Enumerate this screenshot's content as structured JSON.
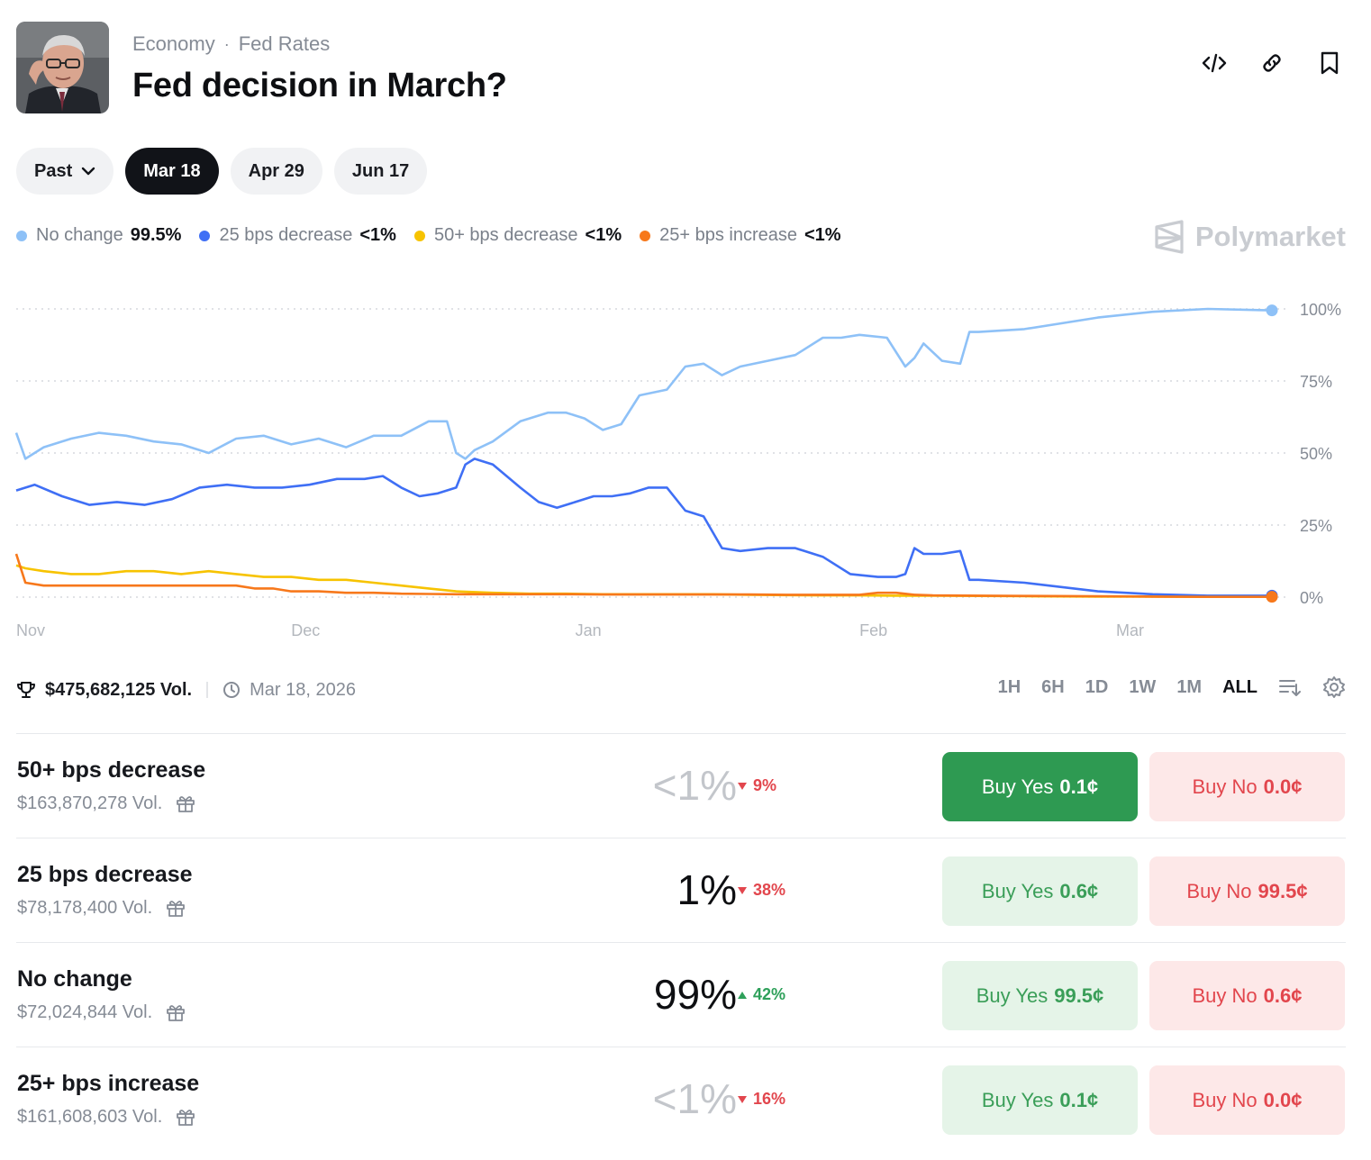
{
  "header": {
    "category": "Economy",
    "separator": "·",
    "subcategory": "Fed Rates",
    "title": "Fed decision in March?"
  },
  "dates": {
    "past_label": "Past",
    "items": [
      "Mar 18",
      "Apr 29",
      "Jun 17"
    ],
    "active": "Mar 18"
  },
  "legend": [
    {
      "name": "No change",
      "value": "99.5%",
      "color": "#8ec1f7"
    },
    {
      "name": "25 bps decrease",
      "value": "<1%",
      "color": "#3f6ff5"
    },
    {
      "name": "50+ bps decrease",
      "value": "<1%",
      "color": "#f7c300"
    },
    {
      "name": "25+ bps increase",
      "value": "<1%",
      "color": "#f7781b"
    }
  ],
  "brand": "Polymarket",
  "chart_data": {
    "type": "line",
    "x_tick_labels": [
      "Nov",
      "Dec",
      "Jan",
      "Feb",
      "Mar"
    ],
    "y_tick_labels": [
      "100%",
      "75%",
      "50%",
      "25%",
      "0%"
    ],
    "ylim": [
      0,
      100
    ],
    "x_range_days": [
      0,
      137
    ],
    "x_tick_days": [
      0,
      30,
      61,
      92,
      120
    ],
    "grid": true,
    "series": [
      {
        "name": "No change",
        "color": "#8ec1f7",
        "x": [
          0,
          1,
          3,
          6,
          9,
          12,
          15,
          18,
          21,
          24,
          27,
          30,
          33,
          36,
          39,
          42,
          45,
          47,
          48,
          49,
          50,
          52,
          55,
          58,
          60,
          62,
          64,
          66,
          68,
          71,
          73,
          75,
          77,
          79,
          82,
          85,
          88,
          90,
          92,
          95,
          97,
          98,
          99,
          101,
          103,
          104,
          105,
          110,
          118,
          124,
          130,
          137
        ],
        "y": [
          57,
          48,
          52,
          55,
          57,
          56,
          54,
          53,
          50,
          55,
          56,
          53,
          55,
          52,
          56,
          56,
          61,
          61,
          50,
          48,
          51,
          54,
          61,
          64,
          64,
          62,
          58,
          60,
          70,
          72,
          80,
          81,
          77,
          80,
          82,
          84,
          90,
          90,
          91,
          90,
          80,
          83,
          88,
          82,
          81,
          92,
          92,
          93,
          97,
          99,
          100,
          99.5
        ]
      },
      {
        "name": "25 bps decrease",
        "color": "#3f6ff5",
        "x": [
          0,
          2,
          5,
          8,
          11,
          14,
          17,
          20,
          23,
          26,
          29,
          32,
          35,
          38,
          40,
          42,
          44,
          46,
          48,
          49,
          50,
          52,
          55,
          57,
          59,
          61,
          63,
          65,
          67,
          69,
          71,
          73,
          75,
          77,
          79,
          82,
          85,
          88,
          91,
          94,
          96,
          97,
          98,
          99,
          101,
          103,
          104,
          105,
          110,
          118,
          124,
          130,
          137
        ],
        "y": [
          37,
          39,
          35,
          32,
          33,
          32,
          34,
          38,
          39,
          38,
          38,
          39,
          41,
          41,
          42,
          38,
          35,
          36,
          38,
          46,
          48,
          46,
          38,
          33,
          31,
          33,
          35,
          35,
          36,
          38,
          38,
          30,
          28,
          17,
          16,
          17,
          17,
          14,
          8,
          7,
          7,
          8,
          17,
          15,
          15,
          16,
          6,
          6,
          5,
          2,
          1,
          0.5,
          0.5
        ]
      },
      {
        "name": "50+ bps decrease",
        "color": "#f7c300",
        "x": [
          0,
          1,
          3,
          6,
          9,
          12,
          15,
          18,
          21,
          24,
          27,
          30,
          33,
          36,
          39,
          42,
          45,
          48,
          52,
          56,
          60,
          64,
          68,
          72,
          76,
          80,
          84,
          88,
          92,
          96,
          100,
          105,
          110,
          118,
          124,
          130,
          137
        ],
        "y": [
          11,
          10,
          9,
          8,
          8,
          9,
          9,
          8,
          9,
          8,
          7,
          7,
          6,
          6,
          5,
          4,
          3,
          2,
          1.5,
          1.2,
          1.2,
          1.0,
          1.0,
          1.0,
          1.0,
          0.8,
          0.7,
          0.6,
          0.6,
          0.5,
          0.5,
          0.4,
          0.3,
          0.2,
          0.2,
          0.1,
          0.1
        ]
      },
      {
        "name": "25+ bps increase",
        "color": "#f7781b",
        "x": [
          0,
          1,
          3,
          6,
          9,
          12,
          15,
          18,
          21,
          24,
          26,
          28,
          30,
          33,
          36,
          39,
          42,
          45,
          48,
          52,
          56,
          60,
          64,
          68,
          72,
          76,
          80,
          84,
          88,
          92,
          94,
          96,
          98,
          100,
          105,
          110,
          118,
          124,
          130,
          137
        ],
        "y": [
          15,
          5,
          4,
          4,
          4,
          4,
          4,
          4,
          4,
          4,
          3,
          3,
          2,
          2,
          1.5,
          1.5,
          1.2,
          1.1,
          1.0,
          1.0,
          1.0,
          1.0,
          0.9,
          0.9,
          0.9,
          0.9,
          0.9,
          0.8,
          0.8,
          0.8,
          1.5,
          1.5,
          0.8,
          0.6,
          0.5,
          0.4,
          0.3,
          0.2,
          0.1,
          0.1
        ]
      }
    ]
  },
  "stats": {
    "volume": "$475,682,125 Vol.",
    "date": "Mar 18, 2026",
    "ranges": [
      "1H",
      "6H",
      "1D",
      "1W",
      "1M",
      "ALL"
    ],
    "active_range": "ALL"
  },
  "outcomes": [
    {
      "name": "50+ bps decrease",
      "volume": "$163,870,278 Vol.",
      "prob": "<1%",
      "delta": "9%",
      "direction": "down",
      "yes_label": "Buy Yes",
      "yes_price": "0.1¢",
      "no_label": "Buy No",
      "no_price": "0.0¢"
    },
    {
      "name": "25 bps decrease",
      "volume": "$78,178,400 Vol.",
      "prob": "1%",
      "delta": "38%",
      "direction": "down",
      "yes_label": "Buy Yes",
      "yes_price": "0.6¢",
      "no_label": "Buy No",
      "no_price": "99.5¢"
    },
    {
      "name": "No change",
      "volume": "$72,024,844 Vol.",
      "prob": "99%",
      "delta": "42%",
      "direction": "up",
      "yes_label": "Buy Yes",
      "yes_price": "99.5¢",
      "no_label": "Buy No",
      "no_price": "0.6¢"
    },
    {
      "name": "25+ bps increase",
      "volume": "$161,608,603 Vol.",
      "prob": "<1%",
      "delta": "16%",
      "direction": "down",
      "yes_label": "Buy Yes",
      "yes_price": "0.1¢",
      "no_label": "Buy No",
      "no_price": "0.0¢"
    }
  ]
}
